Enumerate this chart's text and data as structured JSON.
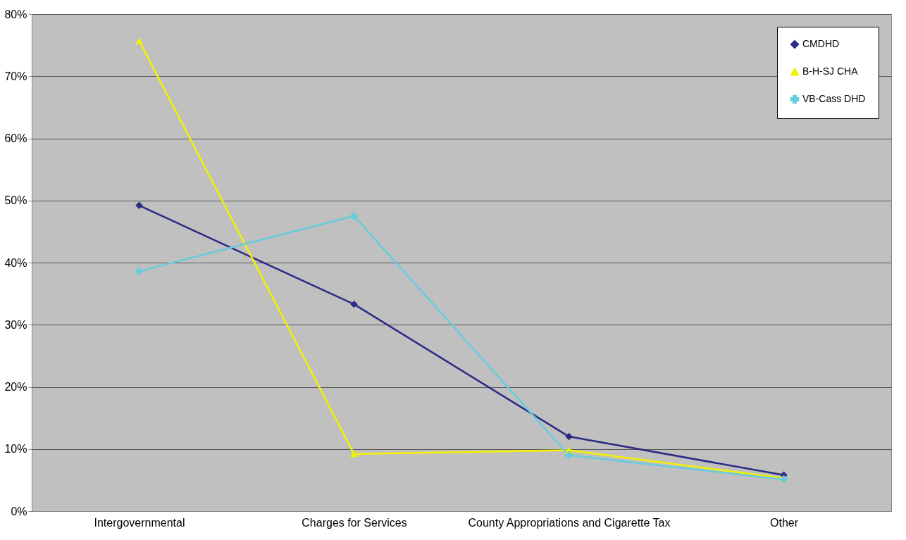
{
  "chart_data": {
    "type": "line",
    "categories": [
      "Intergovernmental",
      "Charges for Services",
      "County Appropriations and Cigarette Tax",
      "Other"
    ],
    "series": [
      {
        "name": "CMDHD",
        "color": "#2b2b85",
        "marker": "diamond",
        "values": [
          49.2,
          33.3,
          12.0,
          5.8
        ]
      },
      {
        "name": "B-H-SJ CHA",
        "color": "#f2f200",
        "marker": "triangle",
        "values": [
          75.7,
          9.2,
          9.8,
          5.3
        ]
      },
      {
        "name": "VB-Cass DHD",
        "color": "#66ccdd",
        "marker": "cross",
        "values": [
          38.6,
          47.5,
          9.0,
          5.1
        ]
      }
    ],
    "ylim": [
      0,
      80
    ],
    "yticks": [
      {
        "value": 0,
        "label": "0%"
      },
      {
        "value": 10,
        "label": "10%"
      },
      {
        "value": 20,
        "label": "20%"
      },
      {
        "value": 30,
        "label": "30%"
      },
      {
        "value": 40,
        "label": "40%"
      },
      {
        "value": 50,
        "label": "50%"
      },
      {
        "value": 60,
        "label": "60%"
      },
      {
        "value": 70,
        "label": "70%"
      },
      {
        "value": 80,
        "label": "80%"
      }
    ],
    "grid": "y",
    "legend": "top right",
    "line_style": "solid"
  }
}
